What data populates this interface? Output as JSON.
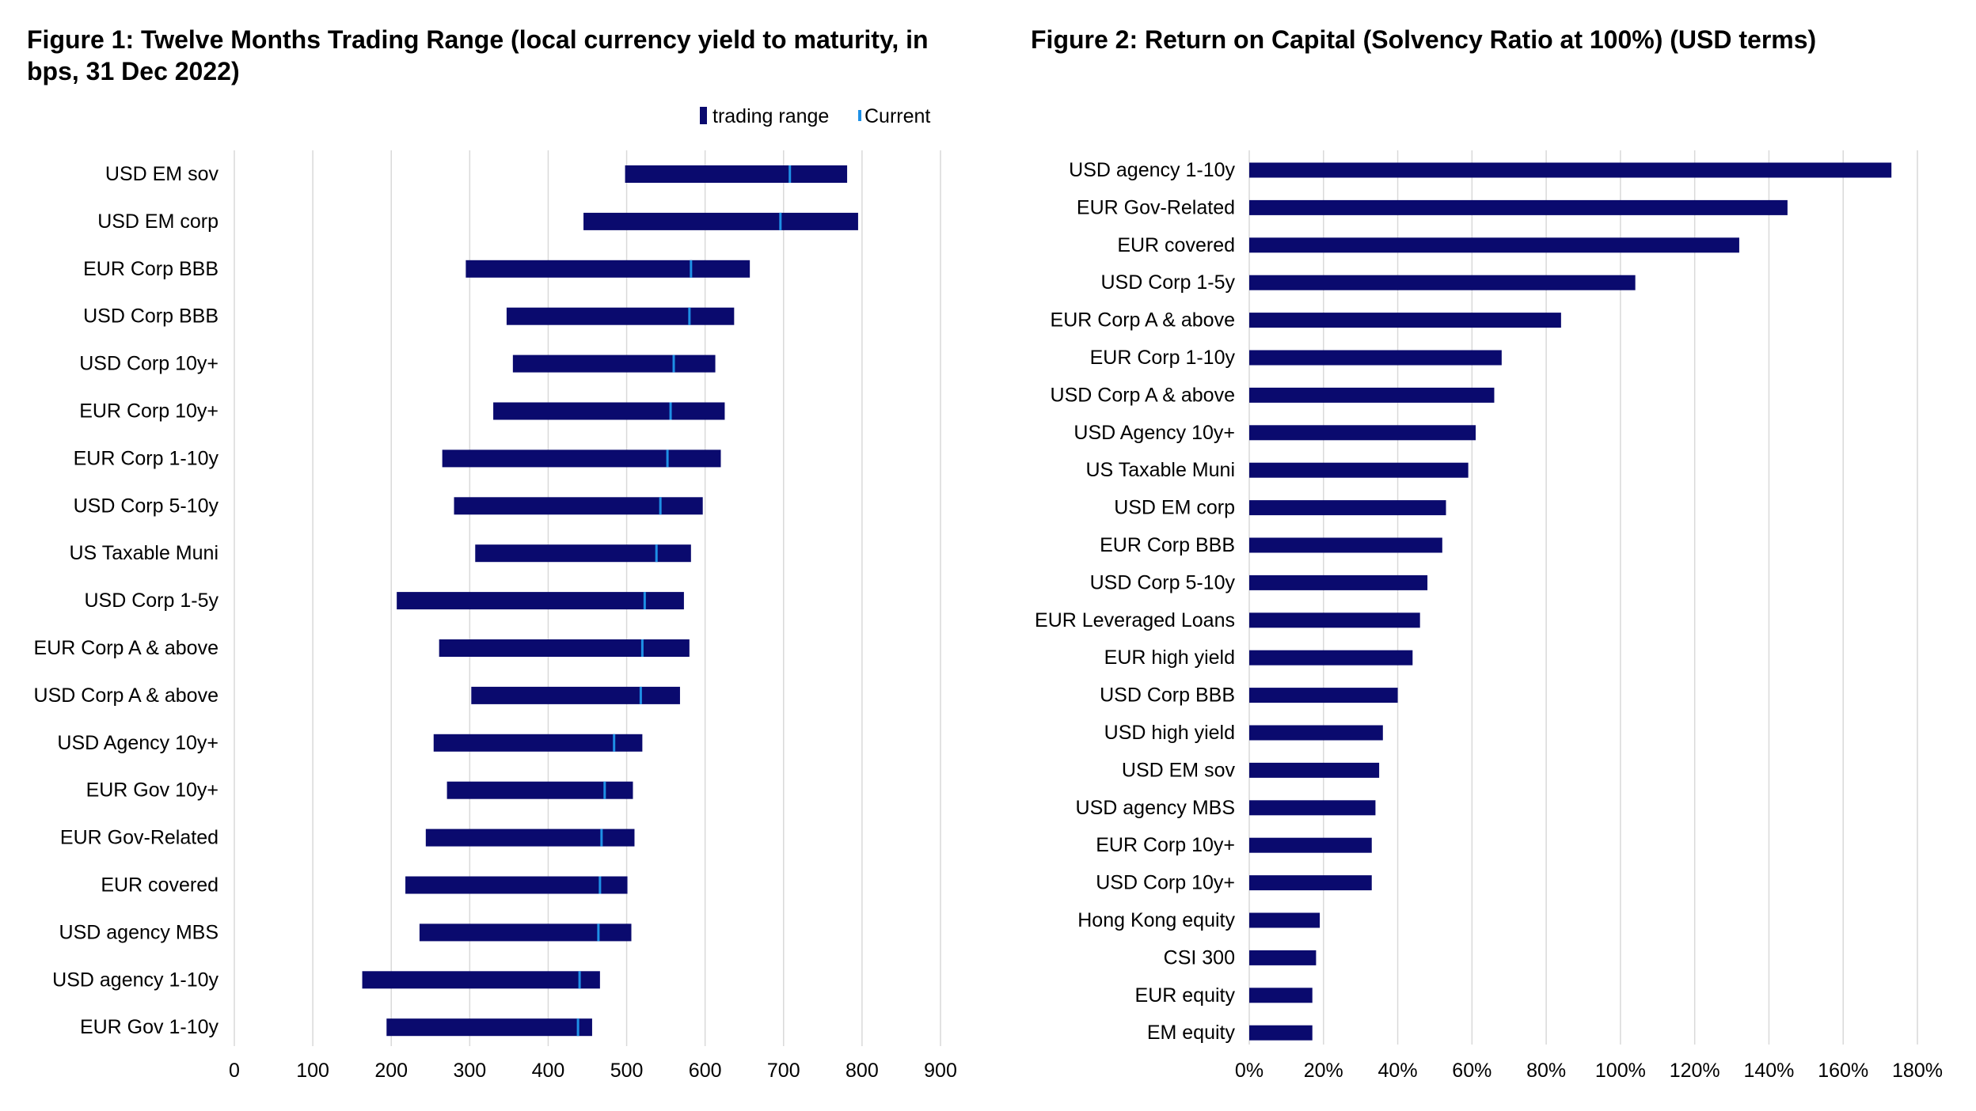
{
  "chart_data": [
    {
      "type": "bar",
      "subtype": "floating-range",
      "title": "Figure 1: Twelve Months Trading Range (local currency yield to maturity, in bps, 31 Dec 2022)",
      "xlim": [
        0,
        900
      ],
      "x_ticks": [
        "0",
        "100",
        "200",
        "300",
        "400",
        "500",
        "600",
        "700",
        "800",
        "900"
      ],
      "grid": "vertical",
      "legend": {
        "position": "top-right",
        "entries": [
          "trading range",
          "Current"
        ]
      },
      "colors": {
        "range": "#0a0a6e",
        "current": "#1e90e6",
        "grid": "#d9d9d9"
      },
      "categories": [
        "USD EM sov",
        "USD EM corp",
        "EUR Corp BBB",
        "USD Corp BBB",
        "USD Corp 10y+",
        "EUR Corp 10y+",
        "EUR Corp 1-10y",
        "USD Corp 5-10y",
        "US Taxable Muni",
        "USD Corp 1-5y",
        "EUR Corp A & above",
        "USD Corp A & above",
        "USD Agency 10y+",
        "EUR Gov 10y+",
        "EUR Gov-Related",
        "EUR covered",
        "USD agency MBS",
        "USD agency 1-10y",
        "EUR Gov 1-10y"
      ],
      "series": [
        {
          "name": "trading range",
          "low": [
            498,
            445,
            295,
            347,
            355,
            330,
            265,
            280,
            307,
            207,
            261,
            302,
            254,
            271,
            244,
            218,
            236,
            163,
            194
          ],
          "high": [
            781,
            795,
            657,
            637,
            613,
            625,
            620,
            597,
            582,
            573,
            580,
            568,
            520,
            508,
            510,
            501,
            506,
            466,
            456
          ]
        },
        {
          "name": "Current",
          "values": [
            708,
            696,
            582,
            580,
            560,
            556,
            552,
            543,
            538,
            523,
            520,
            518,
            484,
            472,
            468,
            466,
            464,
            440,
            438
          ]
        }
      ]
    },
    {
      "type": "bar",
      "orientation": "horizontal",
      "title": "Figure 2: Return on Capital (Solvency Ratio at 100%) (USD terms)",
      "xlim": [
        0,
        180
      ],
      "x_ticks": [
        "0%",
        "20%",
        "40%",
        "60%",
        "80%",
        "100%",
        "120%",
        "140%",
        "160%",
        "180%"
      ],
      "grid": "vertical",
      "colors": {
        "bar": "#0a0a6e",
        "grid": "#d9d9d9"
      },
      "categories": [
        "USD agency 1-10y",
        "EUR Gov-Related",
        "EUR covered",
        "USD Corp 1-5y",
        "EUR Corp A & above",
        "EUR Corp 1-10y",
        "USD Corp A & above",
        "USD Agency 10y+",
        "US Taxable Muni",
        "USD EM corp",
        "EUR Corp BBB",
        "USD Corp 5-10y",
        "EUR Leveraged Loans",
        "EUR high yield",
        "USD Corp BBB",
        "USD high yield",
        "USD EM sov",
        "USD agency MBS",
        "EUR Corp 10y+",
        "USD Corp 10y+",
        "Hong Kong equity",
        "CSI 300",
        "EUR equity",
        "EM equity"
      ],
      "values": [
        173,
        145,
        132,
        104,
        84,
        68,
        66,
        61,
        59,
        53,
        52,
        48,
        46,
        44,
        40,
        36,
        35,
        34,
        33,
        33,
        19,
        18,
        17,
        17
      ]
    }
  ]
}
